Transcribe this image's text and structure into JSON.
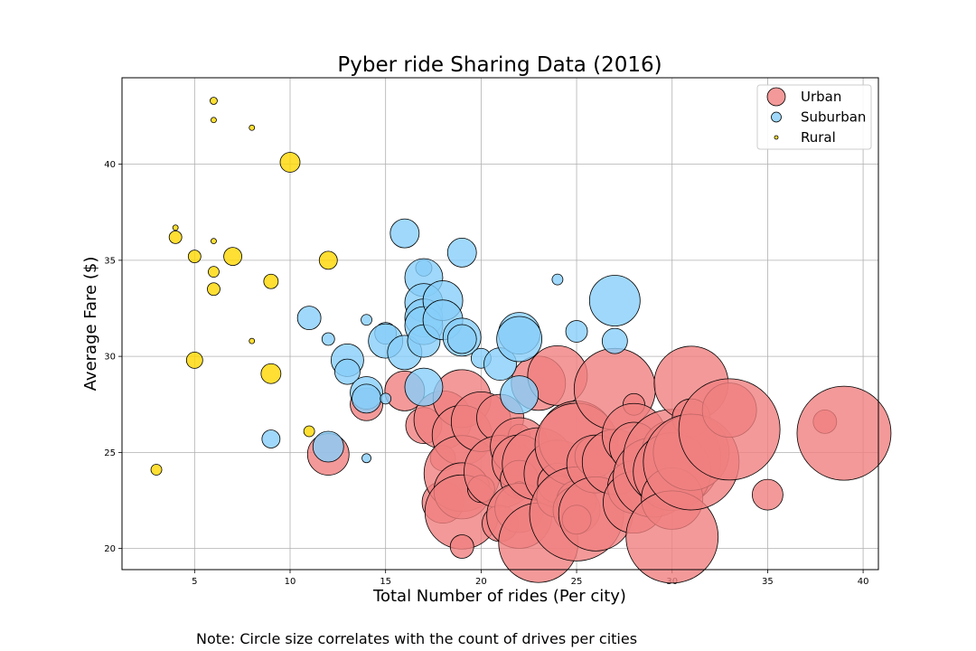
{
  "chart_data": {
    "type": "scatter",
    "title": "Pyber ride Sharing Data (2016)",
    "xlabel": "Total Number of rides (Per city)",
    "ylabel": "Average Fare ($)",
    "xlim": [
      1.2,
      40.8
    ],
    "ylim": [
      18.9,
      44.5
    ],
    "xticks": [
      5,
      10,
      15,
      20,
      25,
      30,
      35,
      40
    ],
    "yticks": [
      20,
      25,
      30,
      35,
      40
    ],
    "grid": true,
    "legend_position": "top-right",
    "note": "Note: Circle size correlates with the count of drives per cities",
    "series": [
      {
        "name": "Urban",
        "color": "#f08080",
        "points": [
          [
            12,
            24.9,
            2.3
          ],
          [
            14,
            27.5,
            1.8
          ],
          [
            16,
            28.2,
            2.2
          ],
          [
            17,
            26.4,
            2.0
          ],
          [
            18,
            26.7,
            3.2
          ],
          [
            18,
            24.7,
            1.4
          ],
          [
            18,
            22.4,
            2.3
          ],
          [
            19,
            27.8,
            3.2
          ],
          [
            19,
            25.9,
            3.3
          ],
          [
            19,
            23.9,
            4.2
          ],
          [
            19,
            23.0,
            3.1
          ],
          [
            19,
            21.9,
            4.1
          ],
          [
            19,
            20.1,
            1.3
          ],
          [
            20,
            26.6,
            3.3
          ],
          [
            20,
            23.1,
            1.5
          ],
          [
            21,
            26.8,
            2.6
          ],
          [
            21,
            24.0,
            4.0
          ],
          [
            21,
            21.3,
            2.0
          ],
          [
            22,
            25.9,
            1.2
          ],
          [
            22,
            25.3,
            3.2
          ],
          [
            22,
            24.5,
            3.0
          ],
          [
            22,
            23.6,
            2.1
          ],
          [
            22,
            23.1,
            0.8
          ],
          [
            22,
            22.1,
            2.7
          ],
          [
            22,
            21.7,
            3.6
          ],
          [
            23,
            28.6,
            3.0
          ],
          [
            23,
            24.4,
            4.0
          ],
          [
            23,
            20.3,
            4.4
          ],
          [
            24,
            29.0,
            3.3
          ],
          [
            24,
            23.9,
            3.7
          ],
          [
            24,
            23.4,
            2.2
          ],
          [
            24,
            22.7,
            2.3
          ],
          [
            25,
            25.7,
            4.2
          ],
          [
            25,
            25.4,
            4.6
          ],
          [
            25,
            22.5,
            2.2
          ],
          [
            25,
            22.0,
            2.6
          ],
          [
            25,
            21.8,
            5.2
          ],
          [
            25,
            21.5,
            1.6
          ],
          [
            26,
            24.8,
            2.3
          ],
          [
            26,
            24.4,
            3.2
          ],
          [
            26,
            21.8,
            4.1
          ],
          [
            27,
            28.3,
            4.5
          ],
          [
            27,
            24.5,
            3.6
          ],
          [
            28,
            27.5,
            1.2
          ],
          [
            28,
            25.9,
            3.5
          ],
          [
            28,
            25.3,
            2.7
          ],
          [
            28,
            23.2,
            2.9
          ],
          [
            28,
            22.4,
            3.4
          ],
          [
            29,
            23.7,
            4.4
          ],
          [
            30,
            25.1,
            3.3
          ],
          [
            30,
            24.7,
            5.4
          ],
          [
            30,
            24.0,
            4.3
          ],
          [
            30,
            22.6,
            3.4
          ],
          [
            30,
            20.6,
            5.1
          ],
          [
            31,
            28.6,
            4.1
          ],
          [
            31,
            26.8,
            2.1
          ],
          [
            31,
            25.0,
            4.2
          ],
          [
            31,
            24.5,
            5.3
          ],
          [
            33,
            27.2,
            3.0
          ],
          [
            33,
            26.2,
            5.6
          ],
          [
            35,
            22.8,
            1.7
          ],
          [
            38,
            26.6,
            1.3
          ],
          [
            39,
            26.0,
            5.2
          ]
        ]
      },
      {
        "name": "Suburban",
        "color": "#87cefa",
        "points": [
          [
            9,
            25.7,
            1.0
          ],
          [
            11,
            32.0,
            1.3
          ],
          [
            12,
            30.9,
            0.7
          ],
          [
            12,
            25.3,
            1.7
          ],
          [
            13,
            29.8,
            1.8
          ],
          [
            13,
            29.2,
            1.4
          ],
          [
            14,
            31.9,
            0.6
          ],
          [
            14,
            28.1,
            1.8
          ],
          [
            14,
            27.8,
            1.6
          ],
          [
            14,
            24.7,
            0.5
          ],
          [
            15,
            31.2,
            1.2
          ],
          [
            15,
            30.8,
            1.9
          ],
          [
            15,
            27.8,
            0.6
          ],
          [
            16,
            36.4,
            1.6
          ],
          [
            16,
            30.2,
            1.9
          ],
          [
            17,
            34.6,
            0.9
          ],
          [
            17,
            34.1,
            2.1
          ],
          [
            17,
            32.8,
            2.1
          ],
          [
            17,
            32.0,
            2.1
          ],
          [
            17,
            31.6,
            2.1
          ],
          [
            17,
            30.8,
            1.8
          ],
          [
            17,
            28.4,
            2.1
          ],
          [
            18,
            32.9,
            2.2
          ],
          [
            18,
            31.9,
            2.2
          ],
          [
            19,
            35.4,
            1.6
          ],
          [
            19,
            31.0,
            2.1
          ],
          [
            19,
            30.9,
            1.6
          ],
          [
            20,
            29.9,
            1.1
          ],
          [
            21,
            29.6,
            1.8
          ],
          [
            22,
            31.2,
            2.3
          ],
          [
            22,
            30.9,
            2.5
          ],
          [
            22,
            28.0,
            2.1
          ],
          [
            24,
            34.0,
            0.6
          ],
          [
            25,
            31.3,
            1.2
          ],
          [
            27,
            32.9,
            2.8
          ],
          [
            27,
            30.8,
            1.4
          ]
        ]
      },
      {
        "name": "Rural",
        "color": "#ffd700",
        "points": [
          [
            3,
            24.1,
            0.6
          ],
          [
            4,
            36.7,
            0.3
          ],
          [
            4,
            36.2,
            0.7
          ],
          [
            5,
            35.2,
            0.7
          ],
          [
            5,
            29.8,
            0.9
          ],
          [
            6,
            43.3,
            0.4
          ],
          [
            6,
            42.3,
            0.3
          ],
          [
            6,
            36.0,
            0.3
          ],
          [
            6,
            34.4,
            0.6
          ],
          [
            6,
            33.5,
            0.7
          ],
          [
            7,
            35.2,
            1.0
          ],
          [
            8,
            41.9,
            0.3
          ],
          [
            8,
            30.8,
            0.3
          ],
          [
            9,
            33.9,
            0.8
          ],
          [
            9,
            29.1,
            1.1
          ],
          [
            10,
            40.1,
            1.1
          ],
          [
            11,
            26.1,
            0.6
          ],
          [
            12,
            35.0,
            1.0
          ]
        ]
      }
    ]
  }
}
